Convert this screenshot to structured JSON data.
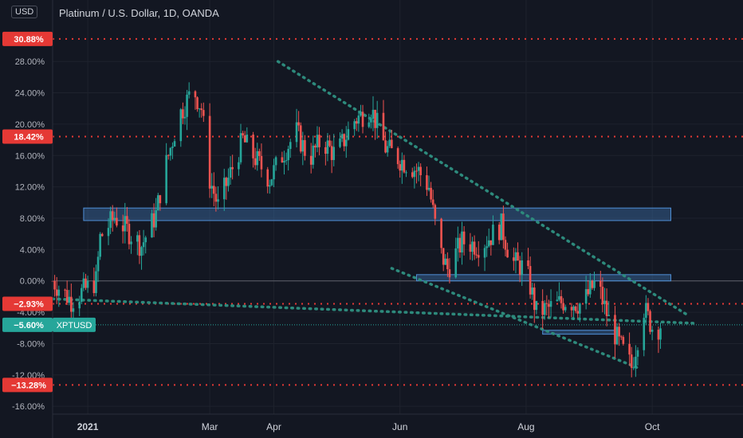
{
  "header": {
    "title": "Platinum / U.S. Dollar, 1D, OANDA",
    "currency": "USD"
  },
  "colors": {
    "background": "#131722",
    "up": "#26a69a",
    "down": "#ef5350",
    "level_line": "#e53935",
    "trendline": "#2d8a7c",
    "zone_fill": "#3c6ea8",
    "zone_border": "#4f8fd6",
    "grid": "#1e222d",
    "current_price": "#26a69a"
  },
  "chart_data": {
    "type": "candlestick",
    "title": "Platinum / U.S. Dollar, 1D, OANDA",
    "ylabel": "USD",
    "y_unit": "percent",
    "ylim": [
      -17,
      33
    ],
    "y_ticks": [
      "28.00%",
      "24.00%",
      "20.00%",
      "16.00%",
      "12.00%",
      "8.00%",
      "4.00%",
      "0.00%",
      "-4.00%",
      "-8.00%",
      "-12.00%",
      "-16.00%"
    ],
    "y_tick_values": [
      28,
      24,
      20,
      16,
      12,
      8,
      4,
      0,
      -4,
      -8,
      -12,
      -16
    ],
    "x_labels": [
      "2021",
      "Mar",
      "Apr",
      "Jun",
      "Aug",
      "Oct"
    ],
    "x_label_dates": [
      "2021-01-01",
      "2021-03-01",
      "2021-04-01",
      "2021-06-01",
      "2021-08-01",
      "2021-10-01"
    ],
    "x_range": [
      "2020-12-15",
      "2021-10-21"
    ],
    "horizontal_levels": [
      {
        "value": 30.88,
        "label": "30.88%"
      },
      {
        "value": 18.42,
        "label": "18.42%"
      },
      {
        "value": -2.93,
        "label": "−2.93%"
      },
      {
        "value": -13.28,
        "label": "−13.28%"
      }
    ],
    "current_value": {
      "value": -5.6,
      "label": "−5.60%",
      "symbol": "XPTUSD"
    },
    "zero_line": 0,
    "zones": [
      {
        "x_start": "2020-12-30",
        "x_end": "2021-10-10",
        "y_low": 7.7,
        "y_high": 9.3
      },
      {
        "x_start": "2021-06-09",
        "x_end": "2021-10-10",
        "y_low": 0.0,
        "y_high": 0.8
      },
      {
        "x_start": "2021-08-09",
        "x_end": "2021-09-13",
        "y_low": -6.8,
        "y_high": -6.3
      }
    ],
    "trendlines": [
      {
        "points": [
          [
            "2021-04-03",
            28.0
          ],
          [
            "2021-10-19",
            -4.5
          ]
        ]
      },
      {
        "points": [
          [
            "2021-05-28",
            1.6
          ],
          [
            "2021-09-25",
            -11.2
          ]
        ]
      },
      {
        "points": [
          [
            "2020-12-15",
            -2.3
          ],
          [
            "2021-10-21",
            -5.4
          ]
        ]
      }
    ],
    "anchors": [
      [
        "2020-12-15",
        0.0
      ],
      [
        "2020-12-24",
        -2.5
      ],
      [
        "2021-01-05",
        0.0
      ],
      [
        "2021-01-07",
        5.5
      ],
      [
        "2021-01-14",
        8.2
      ],
      [
        "2021-01-27",
        4.5
      ],
      [
        "2021-02-03",
        8.5
      ],
      [
        "2021-02-07",
        14.0
      ],
      [
        "2021-02-14",
        21.0
      ],
      [
        "2021-02-21",
        24.5
      ],
      [
        "2021-02-25",
        22.0
      ],
      [
        "2021-03-01",
        13.0
      ],
      [
        "2021-03-05",
        9.5
      ],
      [
        "2021-03-10",
        13.0
      ],
      [
        "2021-03-17",
        18.0
      ],
      [
        "2021-03-22",
        16.0
      ],
      [
        "2021-03-30",
        13.0
      ],
      [
        "2021-04-06",
        16.5
      ],
      [
        "2021-04-12",
        19.0
      ],
      [
        "2021-04-18",
        15.5
      ],
      [
        "2021-04-24",
        18.0
      ],
      [
        "2021-05-01",
        16.0
      ],
      [
        "2021-05-10",
        20.5
      ],
      [
        "2021-05-18",
        22.0
      ],
      [
        "2021-05-25",
        17.0
      ],
      [
        "2021-06-01",
        15.5
      ],
      [
        "2021-06-10",
        14.0
      ],
      [
        "2021-06-15",
        12.0
      ],
      [
        "2021-06-20",
        4.0
      ],
      [
        "2021-06-24",
        1.5
      ],
      [
        "2021-07-01",
        5.0
      ],
      [
        "2021-07-10",
        4.5
      ],
      [
        "2021-07-20",
        7.0
      ],
      [
        "2021-07-25",
        2.5
      ],
      [
        "2021-08-01",
        1.5
      ],
      [
        "2021-08-06",
        -4.0
      ],
      [
        "2021-08-12",
        -3.5
      ],
      [
        "2021-08-20",
        -2.5
      ],
      [
        "2021-08-28",
        -3.0
      ],
      [
        "2021-09-04",
        0.0
      ],
      [
        "2021-09-10",
        -5.0
      ],
      [
        "2021-09-15",
        -8.0
      ],
      [
        "2021-09-21",
        -11.0
      ],
      [
        "2021-09-27",
        -3.5
      ],
      [
        "2021-10-02",
        -6.5
      ],
      [
        "2021-10-05",
        -5.6
      ]
    ]
  }
}
